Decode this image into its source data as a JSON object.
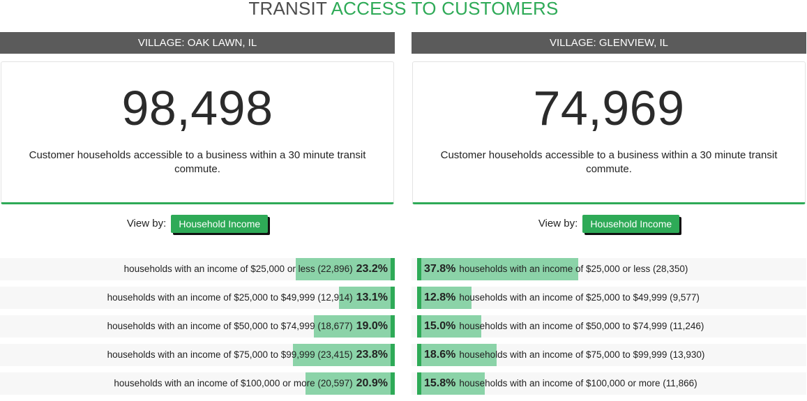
{
  "title": {
    "part1": "TRANSIT",
    "part2": "ACCESS TO CUSTOMERS"
  },
  "colors": {
    "accent": "#2eaa57",
    "bar_fill": "#8bd3a8",
    "header_bar": "#5b5b5b"
  },
  "view_by_label": "View by:",
  "view_by_button": "Household Income",
  "panels": [
    {
      "village": "VILLAGE: OAK LAWN, IL",
      "number": "98,498",
      "description": "Customer households accessible to a business within a 30 minute transit commute.",
      "rows": [
        {
          "label": "households with an income of $25,000 or less (22,896)",
          "pct": "23.2%",
          "fraction": 0.232
        },
        {
          "label": "households with an income of $25,000 to $49,999 (12,914)",
          "pct": "13.1%",
          "fraction": 0.131
        },
        {
          "label": "households with an income of $50,000 to $74,999 (18,677)",
          "pct": "19.0%",
          "fraction": 0.19
        },
        {
          "label": "households with an income of $75,000 to $99,999 (23,415)",
          "pct": "23.8%",
          "fraction": 0.238
        },
        {
          "label": "households with an income of $100,000 or more (20,597)",
          "pct": "20.9%",
          "fraction": 0.209
        }
      ]
    },
    {
      "village": "VILLAGE: GLENVIEW, IL",
      "number": "74,969",
      "description": "Customer households accessible to a business within a 30 minute transit commute.",
      "rows": [
        {
          "label": "households with an income of $25,000 or less (28,350)",
          "pct": "37.8%",
          "fraction": 0.378
        },
        {
          "label": "households with an income of $25,000 to $49,999 (9,577)",
          "pct": "12.8%",
          "fraction": 0.128
        },
        {
          "label": "households with an income of $50,000 to $74,999 (11,246)",
          "pct": "15.0%",
          "fraction": 0.15
        },
        {
          "label": "households with an income of $75,000 to $99,999 (13,930)",
          "pct": "18.6%",
          "fraction": 0.186
        },
        {
          "label": "households with an income of $100,000 or more (11,866)",
          "pct": "15.8%",
          "fraction": 0.158
        }
      ]
    }
  ]
}
